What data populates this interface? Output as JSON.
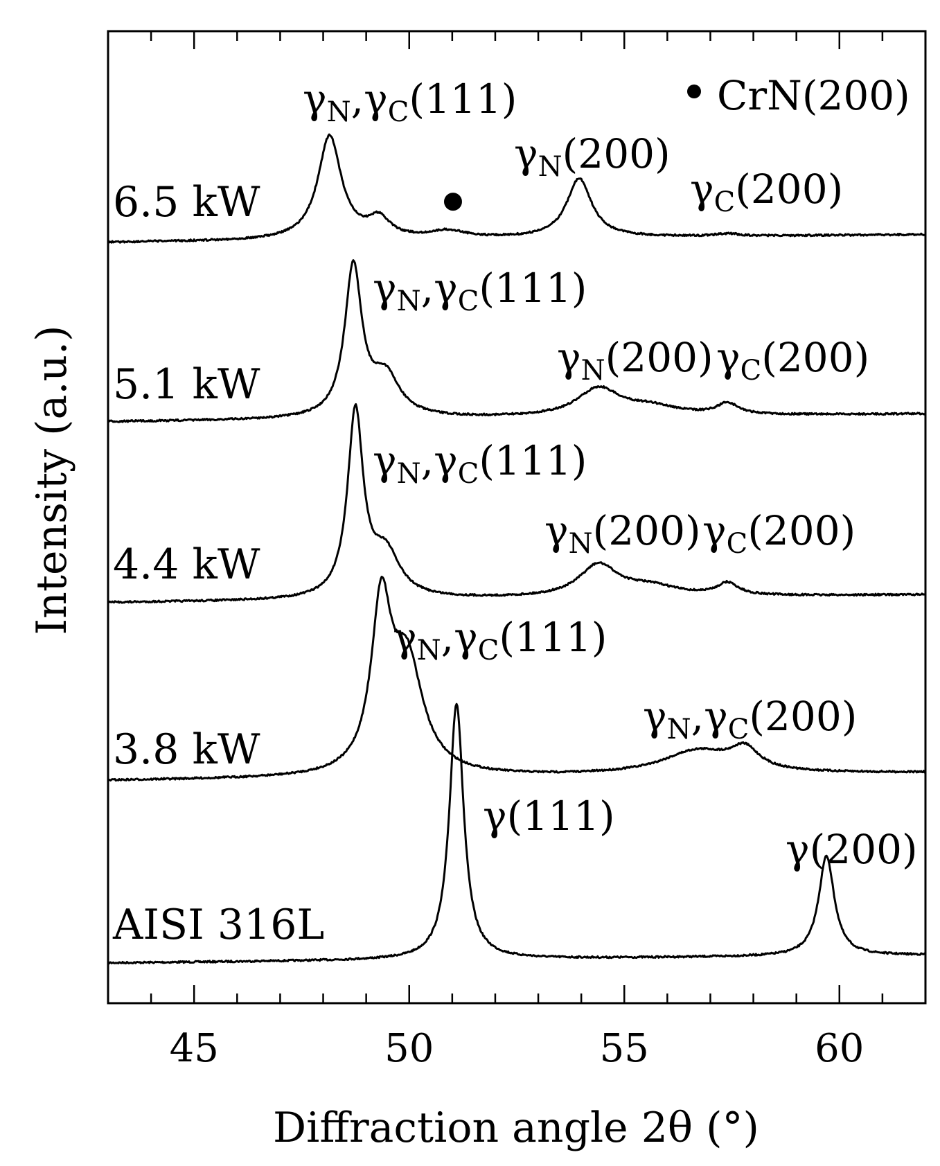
{
  "chart_data": {
    "type": "line",
    "xlabel": "Diffraction angle 2θ (°)",
    "ylabel": "Intensity (a.u.)",
    "xlim": [
      43,
      62
    ],
    "x_ticks": [
      45,
      50,
      55,
      60
    ],
    "x_minor_step": 1,
    "legend": {
      "marker": "●",
      "label": "CrN(200)",
      "position": "top-right"
    },
    "series": [
      {
        "name": "AISI 316L",
        "peaks": [
          {
            "x": 51.1,
            "h": 1.0,
            "w": 0.2,
            "label": "γ(111)"
          },
          {
            "x": 59.7,
            "h": 0.39,
            "w": 0.22,
            "label": "γ(200)"
          }
        ]
      },
      {
        "name": "3.8 kW",
        "peaks": [
          {
            "x": 49.35,
            "h": 0.55,
            "w": 0.28,
            "label": "γN,γC(111)"
          },
          {
            "x": 49.95,
            "h": 0.38,
            "w": 0.45,
            "label": ""
          },
          {
            "x": 56.7,
            "h": 0.08,
            "w": 1.0,
            "label": "γN,γC(200)"
          },
          {
            "x": 57.8,
            "h": 0.07,
            "w": 0.4,
            "label": ""
          }
        ]
      },
      {
        "name": "4.4 kW",
        "peaks": [
          {
            "x": 48.75,
            "h": 0.76,
            "w": 0.22,
            "label": "γN,γC(111)"
          },
          {
            "x": 49.45,
            "h": 0.18,
            "w": 0.4,
            "label": ""
          },
          {
            "x": 54.4,
            "h": 0.13,
            "w": 0.55,
            "label": "γN(200)"
          },
          {
            "x": 55.6,
            "h": 0.04,
            "w": 0.8,
            "label": ""
          },
          {
            "x": 57.4,
            "h": 0.05,
            "w": 0.3,
            "label": "γC(200)"
          }
        ]
      },
      {
        "name": "5.1 kW",
        "peaks": [
          {
            "x": 48.7,
            "h": 0.6,
            "w": 0.24,
            "label": "γN,γC(111)"
          },
          {
            "x": 49.45,
            "h": 0.16,
            "w": 0.4,
            "label": ""
          },
          {
            "x": 54.4,
            "h": 0.11,
            "w": 0.6,
            "label": "γN(200)"
          },
          {
            "x": 55.6,
            "h": 0.035,
            "w": 0.8,
            "label": ""
          },
          {
            "x": 57.4,
            "h": 0.045,
            "w": 0.3,
            "label": "γC(200)"
          }
        ]
      },
      {
        "name": "6.5 kW",
        "peaks": [
          {
            "x": 48.15,
            "h": 0.44,
            "w": 0.33,
            "label": "γN,γC(111)"
          },
          {
            "x": 49.3,
            "h": 0.08,
            "w": 0.3,
            "label": ""
          },
          {
            "x": 50.9,
            "h": 0.03,
            "w": 0.5,
            "label": "CrN(200)"
          },
          {
            "x": 53.95,
            "h": 0.25,
            "w": 0.35,
            "label": "γN(200)"
          },
          {
            "x": 57.4,
            "h": 0.01,
            "w": 0.3,
            "label": "γC(200)"
          }
        ]
      }
    ],
    "annotations": [
      {
        "text": "γN,γC(111)",
        "series": "6.5 kW"
      },
      {
        "text": "γN(200)",
        "series": "6.5 kW"
      },
      {
        "text": "γC(200)",
        "series": "6.5 kW"
      },
      {
        "text": "●",
        "series": "6.5 kW",
        "meaning": "CrN(200)"
      },
      {
        "text": "γN,γC(111)",
        "series": "5.1 kW"
      },
      {
        "text": "γN(200)",
        "series": "5.1 kW"
      },
      {
        "text": "γC(200)",
        "series": "5.1 kW"
      },
      {
        "text": "γN,γC(111)",
        "series": "4.4 kW"
      },
      {
        "text": "γN(200)",
        "series": "4.4 kW"
      },
      {
        "text": "γC(200)",
        "series": "4.4 kW"
      },
      {
        "text": "γN,γC(111)",
        "series": "3.8 kW"
      },
      {
        "text": "γN,γC(200)",
        "series": "3.8 kW"
      },
      {
        "text": "γ(111)",
        "series": "AISI 316L"
      },
      {
        "text": "γ(200)",
        "series": "AISI 316L"
      }
    ]
  }
}
